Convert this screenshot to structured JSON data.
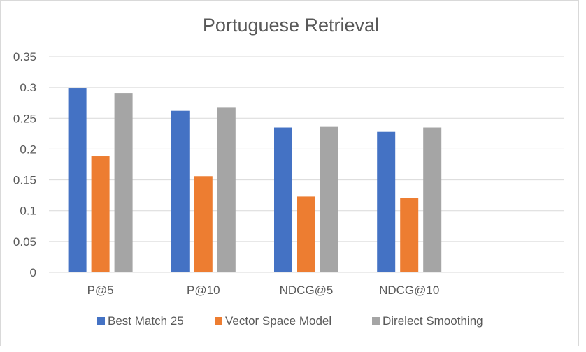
{
  "chart_data": {
    "type": "bar",
    "title": "Portuguese Retrieval",
    "xlabel": "",
    "ylabel": "",
    "categories": [
      "P@5",
      "P@10",
      "NDCG@5",
      "NDCG@10"
    ],
    "series": [
      {
        "name": "Best Match 25",
        "color": "#4472C4",
        "values": [
          0.299,
          0.262,
          0.235,
          0.228
        ]
      },
      {
        "name": "Vector Space Model",
        "color": "#ED7D31",
        "values": [
          0.188,
          0.156,
          0.123,
          0.121
        ]
      },
      {
        "name": "Direlect Smoothing",
        "color": "#A5A5A5",
        "values": [
          0.291,
          0.268,
          0.236,
          0.235
        ]
      }
    ],
    "ylim": [
      0,
      0.35
    ],
    "yticks": [
      "0",
      "0.05",
      "0.1",
      "0.15",
      "0.2",
      "0.25",
      "0.3",
      "0.35"
    ],
    "grid": true,
    "legend_position": "bottom"
  }
}
